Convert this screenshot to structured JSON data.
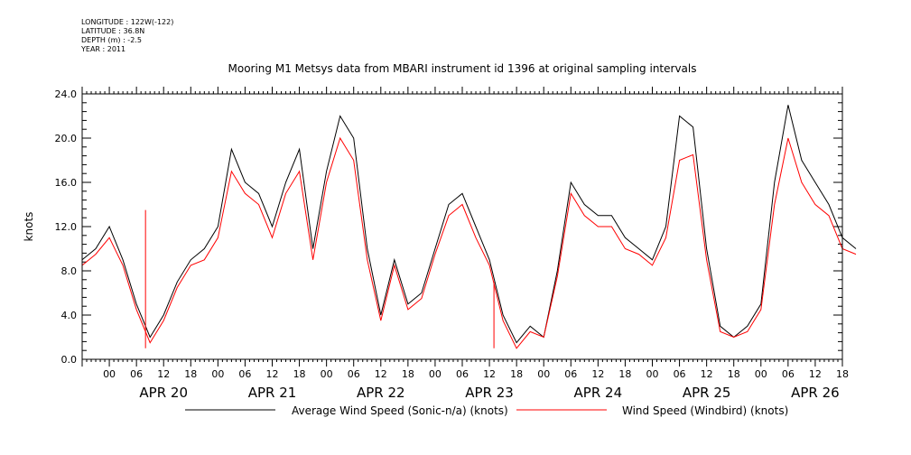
{
  "meta": {
    "longitude": "LONGITUDE : 122W(-122)",
    "latitude": "LATITUDE : 36.8N",
    "depth": "DEPTH (m) : -2.5",
    "year": "YEAR : 2011"
  },
  "colors": {
    "series_black": "#000000",
    "series_red": "#ff0000"
  },
  "chart_data": {
    "type": "line",
    "title": "Mooring M1 Metsys data from MBARI instrument id 1396 at original sampling intervals",
    "ylabel": "knots",
    "xlabel": "",
    "ylim": [
      0,
      24
    ],
    "yticks": [
      "0.0",
      "4.0",
      "8.0",
      "12.0",
      "16.0",
      "20.0",
      "24.0"
    ],
    "xlim_hours": [
      -6,
      162
    ],
    "hour_labels": [
      "00",
      "06",
      "12",
      "18"
    ],
    "day_labels": [
      "APR 20",
      "APR 21",
      "APR 22",
      "APR 23",
      "APR 24",
      "APR 25",
      "APR 26"
    ],
    "grid": false,
    "legend": "bottom",
    "series": [
      {
        "name": "Average Wind Speed (Sonic-n/a) (knots)",
        "color": "#000000",
        "x": [
          "2011-04-19T18:00",
          "2011-04-19T21:00",
          "2011-04-20T00:00",
          "2011-04-20T03:00",
          "2011-04-20T06:00",
          "2011-04-20T09:00",
          "2011-04-20T12:00",
          "2011-04-20T15:00",
          "2011-04-20T18:00",
          "2011-04-20T21:00",
          "2011-04-21T00:00",
          "2011-04-21T03:00",
          "2011-04-21T06:00",
          "2011-04-21T09:00",
          "2011-04-21T12:00",
          "2011-04-21T15:00",
          "2011-04-21T18:00",
          "2011-04-21T21:00",
          "2011-04-22T00:00",
          "2011-04-22T03:00",
          "2011-04-22T06:00",
          "2011-04-22T09:00",
          "2011-04-22T12:00",
          "2011-04-22T15:00",
          "2011-04-22T18:00",
          "2011-04-22T21:00",
          "2011-04-23T00:00",
          "2011-04-23T03:00",
          "2011-04-23T06:00",
          "2011-04-23T09:00",
          "2011-04-23T12:00",
          "2011-04-23T15:00",
          "2011-04-23T18:00",
          "2011-04-23T21:00",
          "2011-04-24T00:00",
          "2011-04-24T03:00",
          "2011-04-24T06:00",
          "2011-04-24T09:00",
          "2011-04-24T12:00",
          "2011-04-24T15:00",
          "2011-04-24T18:00",
          "2011-04-24T21:00",
          "2011-04-25T00:00",
          "2011-04-25T03:00",
          "2011-04-25T06:00",
          "2011-04-25T09:00",
          "2011-04-25T12:00",
          "2011-04-25T15:00",
          "2011-04-25T18:00",
          "2011-04-25T21:00",
          "2011-04-26T00:00",
          "2011-04-26T03:00",
          "2011-04-26T06:00",
          "2011-04-26T09:00",
          "2011-04-26T12:00",
          "2011-04-26T15:00",
          "2011-04-26T18:00",
          "2011-04-26T21:00"
        ],
        "values": [
          9.0,
          10.0,
          12.0,
          9.0,
          5.0,
          2.0,
          4.0,
          7.0,
          9.0,
          10.0,
          12.0,
          19.0,
          16.0,
          15.0,
          12.0,
          16.0,
          19.0,
          10.0,
          17.0,
          22.0,
          20.0,
          10.0,
          4.0,
          9.0,
          5.0,
          6.0,
          10.0,
          14.0,
          15.0,
          12.0,
          9.0,
          4.0,
          1.5,
          3.0,
          2.0,
          8.0,
          16.0,
          14.0,
          13.0,
          13.0,
          11.0,
          10.0,
          9.0,
          12.0,
          22.0,
          21.0,
          10.0,
          3.0,
          2.0,
          3.0,
          5.0,
          16.0,
          23.0,
          18.0,
          16.0,
          14.0,
          11.0,
          10.0
        ]
      },
      {
        "name": "Wind Speed (Windbird) (knots)",
        "color": "#ff0000",
        "x": [
          "2011-04-19T18:00",
          "2011-04-19T21:00",
          "2011-04-20T00:00",
          "2011-04-20T03:00",
          "2011-04-20T06:00",
          "2011-04-20T09:00",
          "2011-04-20T12:00",
          "2011-04-20T15:00",
          "2011-04-20T18:00",
          "2011-04-20T21:00",
          "2011-04-21T00:00",
          "2011-04-21T03:00",
          "2011-04-21T06:00",
          "2011-04-21T09:00",
          "2011-04-21T12:00",
          "2011-04-21T15:00",
          "2011-04-21T18:00",
          "2011-04-21T21:00",
          "2011-04-22T00:00",
          "2011-04-22T03:00",
          "2011-04-22T06:00",
          "2011-04-22T09:00",
          "2011-04-22T12:00",
          "2011-04-22T15:00",
          "2011-04-22T18:00",
          "2011-04-22T21:00",
          "2011-04-23T00:00",
          "2011-04-23T03:00",
          "2011-04-23T06:00",
          "2011-04-23T09:00",
          "2011-04-23T12:00",
          "2011-04-23T15:00",
          "2011-04-23T18:00",
          "2011-04-23T21:00",
          "2011-04-24T00:00",
          "2011-04-24T03:00",
          "2011-04-24T06:00",
          "2011-04-24T09:00",
          "2011-04-24T12:00",
          "2011-04-24T15:00",
          "2011-04-24T18:00",
          "2011-04-24T21:00",
          "2011-04-25T00:00",
          "2011-04-25T03:00",
          "2011-04-25T06:00",
          "2011-04-25T09:00",
          "2011-04-25T12:00",
          "2011-04-25T15:00",
          "2011-04-25T18:00",
          "2011-04-25T21:00",
          "2011-04-26T00:00",
          "2011-04-26T03:00",
          "2011-04-26T06:00",
          "2011-04-26T09:00",
          "2011-04-26T12:00",
          "2011-04-26T15:00",
          "2011-04-26T18:00",
          "2011-04-26T21:00"
        ],
        "values": [
          8.5,
          9.5,
          11.0,
          8.5,
          4.5,
          1.5,
          3.5,
          6.5,
          8.5,
          9.0,
          11.0,
          17.0,
          15.0,
          14.0,
          11.0,
          15.0,
          17.0,
          9.0,
          16.0,
          20.0,
          18.0,
          9.0,
          3.5,
          8.5,
          4.5,
          5.5,
          9.5,
          13.0,
          14.0,
          11.0,
          8.5,
          3.5,
          1.0,
          2.5,
          2.0,
          7.5,
          15.0,
          13.0,
          12.0,
          12.0,
          10.0,
          9.5,
          8.5,
          11.0,
          18.0,
          18.5,
          9.0,
          2.5,
          2.0,
          2.5,
          4.5,
          14.0,
          20.0,
          16.0,
          14.0,
          13.0,
          10.0,
          9.5
        ]
      }
    ],
    "annotations": [
      {
        "x": "2011-04-20T08:00",
        "value": 13.5,
        "color": "#ff0000"
      },
      {
        "x": "2011-04-23T13:00",
        "value": 7.0,
        "color": "#ff0000"
      }
    ]
  }
}
